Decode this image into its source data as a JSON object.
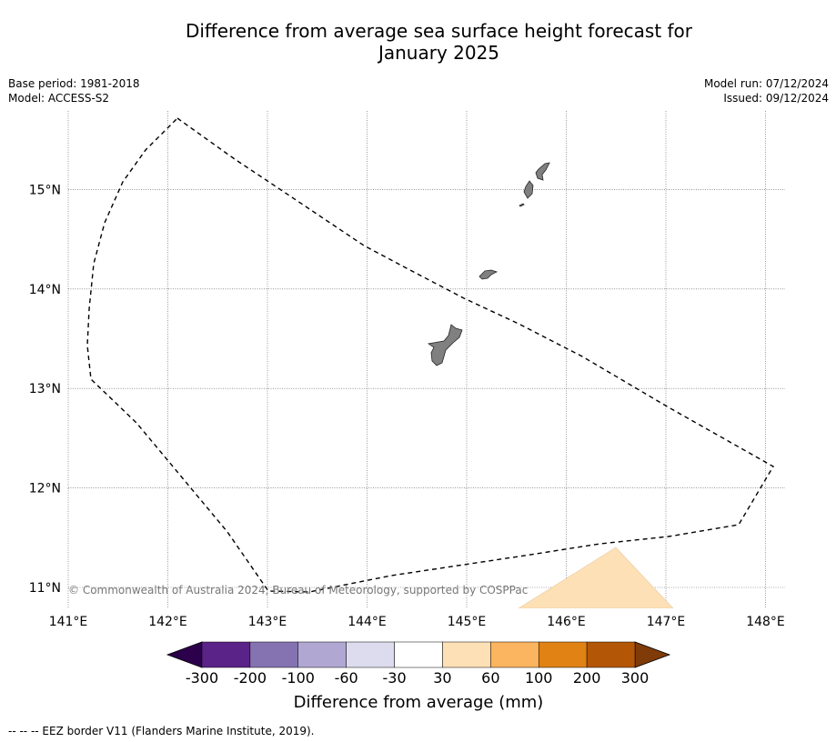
{
  "title_line1": "Difference from average sea surface height forecast for",
  "title_line2": "January 2025",
  "base_period": "Base period: 1981-2018",
  "model": "Model: ACCESS-S2",
  "model_run": "Model run: 07/12/2024",
  "issued": "Issued: 09/12/2024",
  "copyright": "© Commonwealth of Australia 2024, Bureau of Meteorology, supported by COSPPac",
  "footer_note": "--  --  -- EEZ border V11 (Flanders Marine Institute, 2019).",
  "map": {
    "lon_range": [
      141,
      148.2
    ],
    "lat_range": [
      10.8,
      15.75
    ],
    "lon_ticks": [
      "141°E",
      "142°E",
      "143°E",
      "144°E",
      "145°E",
      "146°E",
      "147°E",
      "148°E"
    ],
    "lat_ticks": [
      "11°N",
      "12°N",
      "13°N",
      "14°N",
      "15°N"
    ],
    "grid": true,
    "land_color": "#808080",
    "anomaly_region": {
      "category": "30 to 60",
      "color": "#fde0b6"
    }
  },
  "colorbar": {
    "label": "Difference from average (mm)",
    "tick_labels": [
      "-300",
      "-200",
      "-100",
      "-60",
      "-30",
      "30",
      "60",
      "100",
      "200",
      "300"
    ],
    "colors": [
      "#5a2387",
      "#8473b0",
      "#b0a8d2",
      "#dcdcee",
      "#ffffff",
      "#fde0b6",
      "#fbb45f",
      "#e08214",
      "#b35706"
    ],
    "under_color": "#2d004b",
    "over_color": "#7f3b08"
  }
}
